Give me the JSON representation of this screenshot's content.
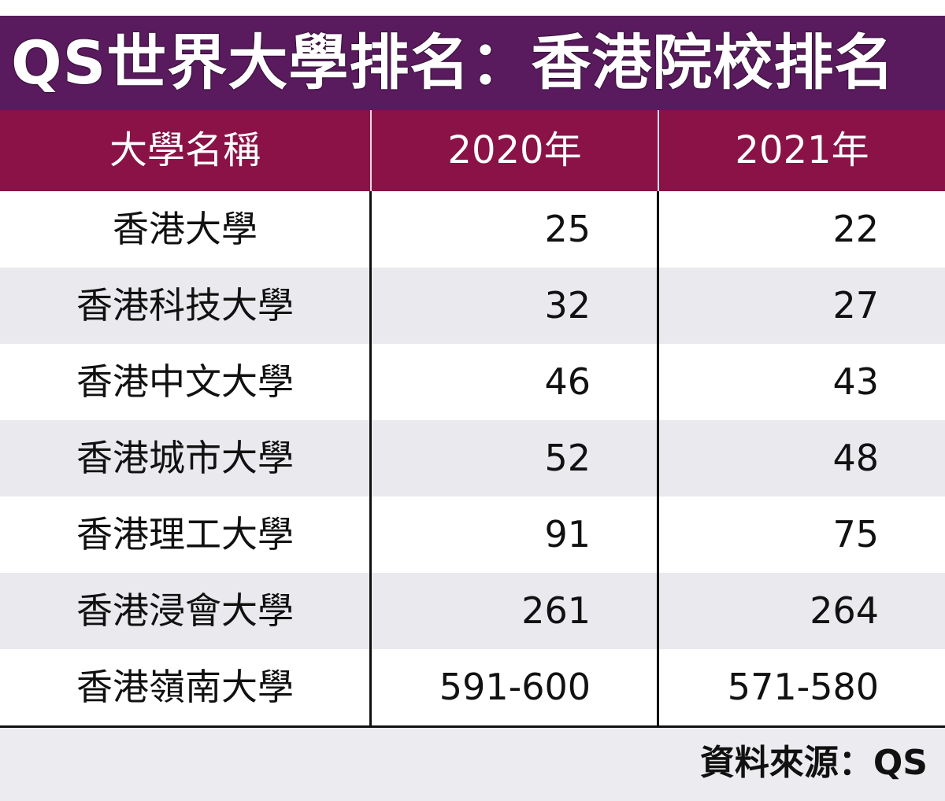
{
  "title": "QS世界大學排名：香港院校排名",
  "colors": {
    "title_band": "#5a1b5e",
    "header_band": "#8a1246",
    "row_alt": "#e9e9ee",
    "footer": "#ececf0"
  },
  "chart_data": {
    "type": "table",
    "title": "QS世界大學排名：香港院校排名",
    "columns": [
      "大學名稱",
      "2020年",
      "2021年"
    ],
    "rows": [
      [
        "香港大學",
        "25",
        "22"
      ],
      [
        "香港科技大學",
        "32",
        "27"
      ],
      [
        "香港中文大學",
        "46",
        "43"
      ],
      [
        "香港城市大學",
        "52",
        "48"
      ],
      [
        "香港理工大學",
        "91",
        "75"
      ],
      [
        "香港浸會大學",
        "261",
        "264"
      ],
      [
        "香港嶺南大學",
        "591-600",
        "571-580"
      ]
    ],
    "source": "資料來源：QS"
  }
}
